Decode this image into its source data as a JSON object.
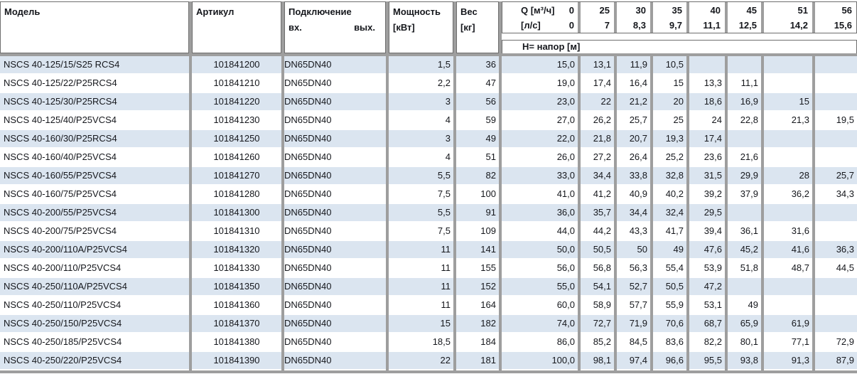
{
  "table": {
    "headers": {
      "model": "Модель",
      "article": "Артикул",
      "connection": "Подключение",
      "conn_in": "вх.",
      "conn_out": "вых.",
      "power_l1": "Мощность",
      "power_l2": "[кВт]",
      "weight_l1": "Вес",
      "weight_l2": "[кг]",
      "q_label_l1": "Q [м³/ч]",
      "q_zero_m3h": "0",
      "q_label_l2": "[л/с]",
      "q_zero_ls": "0",
      "flow_columns": [
        {
          "m3h": "25",
          "ls": "7"
        },
        {
          "m3h": "30",
          "ls": "8,3"
        },
        {
          "m3h": "35",
          "ls": "9,7"
        },
        {
          "m3h": "40",
          "ls": "11,1"
        },
        {
          "m3h": "45",
          "ls": "12,5"
        },
        {
          "m3h": "51",
          "ls": "14,2"
        },
        {
          "m3h": "56",
          "ls": "15,6"
        }
      ],
      "head_band": "Н= напор [м]"
    },
    "rows": [
      {
        "model": "NSCS 40-125/15/S25 RCS4",
        "article": "101841200",
        "conn_in": "DN65",
        "conn_out": "DN40",
        "power": "1,5",
        "weight": "36",
        "h": [
          "15,0",
          "13,1",
          "11,9",
          "10,5",
          "",
          "",
          "",
          ""
        ]
      },
      {
        "model": "NSCS 40-125/22/P25RCS4",
        "article": "101841210",
        "conn_in": "DN65",
        "conn_out": "DN40",
        "power": "2,2",
        "weight": "47",
        "h": [
          "19,0",
          "17,4",
          "16,4",
          "15",
          "13,3",
          "11,1",
          "",
          ""
        ]
      },
      {
        "model": "NSCS 40-125/30/P25RCS4",
        "article": "101841220",
        "conn_in": "DN65",
        "conn_out": "DN40",
        "power": "3",
        "weight": "56",
        "h": [
          "23,0",
          "22",
          "21,2",
          "20",
          "18,6",
          "16,9",
          "15",
          ""
        ]
      },
      {
        "model": "NSCS 40-125/40/P25VCS4",
        "article": "101841230",
        "conn_in": "DN65",
        "conn_out": "DN40",
        "power": "4",
        "weight": "59",
        "h": [
          "27,0",
          "26,2",
          "25,7",
          "25",
          "24",
          "22,8",
          "21,3",
          "19,5"
        ]
      },
      {
        "model": "NSCS 40-160/30/P25RCS4",
        "article": "101841250",
        "conn_in": "DN65",
        "conn_out": "DN40",
        "power": "3",
        "weight": "49",
        "h": [
          "22,0",
          "21,8",
          "20,7",
          "19,3",
          "17,4",
          "",
          "",
          ""
        ]
      },
      {
        "model": "NSCS 40-160/40/P25VCS4",
        "article": "101841260",
        "conn_in": "DN65",
        "conn_out": "DN40",
        "power": "4",
        "weight": "51",
        "h": [
          "26,0",
          "27,2",
          "26,4",
          "25,2",
          "23,6",
          "21,6",
          "",
          ""
        ]
      },
      {
        "model": "NSCS 40-160/55/P25VCS4",
        "article": "101841270",
        "conn_in": "DN65",
        "conn_out": "DN40",
        "power": "5,5",
        "weight": "82",
        "h": [
          "33,0",
          "34,4",
          "33,8",
          "32,8",
          "31,5",
          "29,9",
          "28",
          "25,7"
        ]
      },
      {
        "model": "NSCS 40-160/75/P25VCS4",
        "article": "101841280",
        "conn_in": "DN65",
        "conn_out": "DN40",
        "power": "7,5",
        "weight": "100",
        "h": [
          "41,0",
          "41,2",
          "40,9",
          "40,2",
          "39,2",
          "37,9",
          "36,2",
          "34,3"
        ]
      },
      {
        "model": "NSCS 40-200/55/P25VCS4",
        "article": "101841300",
        "conn_in": "DN65",
        "conn_out": "DN40",
        "power": "5,5",
        "weight": "91",
        "h": [
          "36,0",
          "35,7",
          "34,4",
          "32,4",
          "29,5",
          "",
          "",
          ""
        ]
      },
      {
        "model": "NSCS 40-200/75/P25VCS4",
        "article": "101841310",
        "conn_in": "DN65",
        "conn_out": "DN40",
        "power": "7,5",
        "weight": "109",
        "h": [
          "44,0",
          "44,2",
          "43,3",
          "41,7",
          "39,4",
          "36,1",
          "31,6",
          ""
        ]
      },
      {
        "model": "NSCS 40-200/110A/P25VCS4",
        "article": "101841320",
        "conn_in": "DN65",
        "conn_out": "DN40",
        "power": "11",
        "weight": "141",
        "h": [
          "50,0",
          "50,5",
          "50",
          "49",
          "47,6",
          "45,2",
          "41,6",
          "36,3"
        ]
      },
      {
        "model": "NSCS 40-200/110/P25VCS4",
        "article": "101841330",
        "conn_in": "DN65",
        "conn_out": "DN40",
        "power": "11",
        "weight": "155",
        "h": [
          "56,0",
          "56,8",
          "56,3",
          "55,4",
          "53,9",
          "51,8",
          "48,7",
          "44,5"
        ]
      },
      {
        "model": "NSCS 40-250/110A/P25VCS4",
        "article": "101841350",
        "conn_in": "DN65",
        "conn_out": "DN40",
        "power": "11",
        "weight": "152",
        "h": [
          "55,0",
          "54,1",
          "52,7",
          "50,5",
          "47,2",
          "",
          "",
          ""
        ]
      },
      {
        "model": "NSCS 40-250/110/P25VCS4",
        "article": "101841360",
        "conn_in": "DN65",
        "conn_out": "DN40",
        "power": "11",
        "weight": "164",
        "h": [
          "60,0",
          "58,9",
          "57,7",
          "55,9",
          "53,1",
          "49",
          "",
          ""
        ]
      },
      {
        "model": "NSCS 40-250/150/P25VCS4",
        "article": "101841370",
        "conn_in": "DN65",
        "conn_out": "DN40",
        "power": "15",
        "weight": "182",
        "h": [
          "74,0",
          "72,7",
          "71,9",
          "70,6",
          "68,7",
          "65,9",
          "61,9",
          ""
        ]
      },
      {
        "model": "NSCS 40-250/185/P25VCS4",
        "article": "101841380",
        "conn_in": "DN65",
        "conn_out": "DN40",
        "power": "18,5",
        "weight": "184",
        "h": [
          "86,0",
          "85,2",
          "84,5",
          "83,6",
          "82,2",
          "80,1",
          "77,1",
          "72,9"
        ]
      },
      {
        "model": "NSCS 40-250/220/P25VCS4",
        "article": "101841390",
        "conn_in": "DN65",
        "conn_out": "DN40",
        "power": "22",
        "weight": "181",
        "h": [
          "100,0",
          "98,1",
          "97,4",
          "96,6",
          "95,5",
          "93,8",
          "91,3",
          "87,9"
        ]
      }
    ]
  },
  "colors": {
    "row_alt": "#dbe5f0",
    "row_plain": "#ffffff",
    "column_bar": "#9e9e9e",
    "box_border": "#6e6e6e",
    "text": "#15171c"
  }
}
